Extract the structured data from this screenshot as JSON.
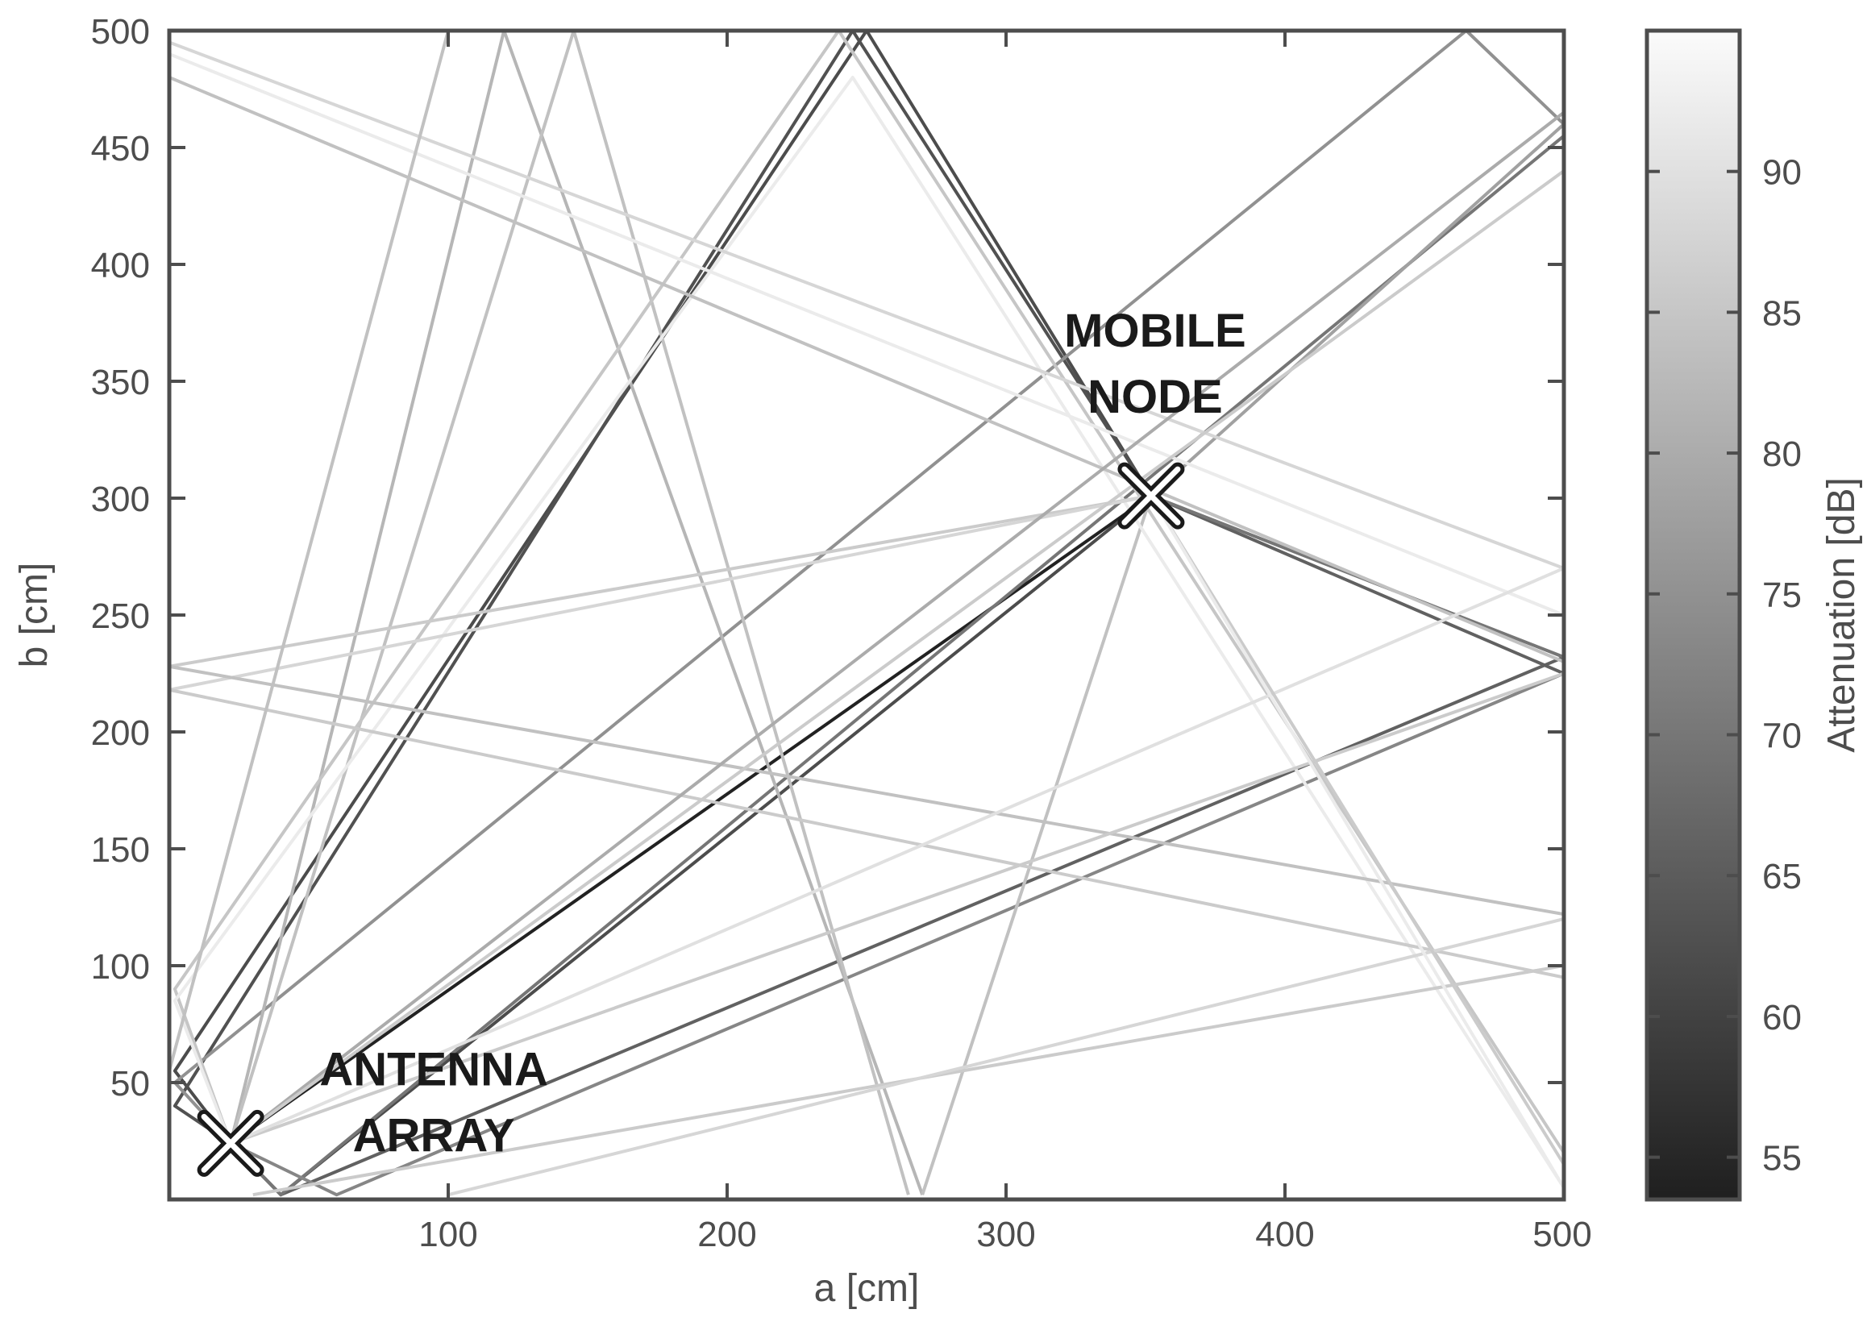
{
  "chart_data": {
    "type": "line",
    "xlabel": "a [cm]",
    "ylabel": "b [cm]",
    "xlim": [
      0,
      500
    ],
    "ylim": [
      0,
      500
    ],
    "xticks": [
      100,
      200,
      300,
      400,
      500
    ],
    "yticks": [
      50,
      100,
      150,
      200,
      250,
      300,
      350,
      400,
      450,
      500
    ],
    "grid": false,
    "colorbar": {
      "label": "Attenuation [dB]",
      "range": [
        53.5,
        95
      ],
      "ticks": [
        55,
        60,
        65,
        70,
        75,
        80,
        85,
        90
      ],
      "colormap": "gray"
    },
    "markers": [
      {
        "label_lines": [
          "ANTENNA",
          "ARRAY"
        ],
        "x": 22,
        "y": 24
      },
      {
        "label_lines": [
          "MOBILE",
          "NODE"
        ],
        "x": 352,
        "y": 301
      }
    ],
    "rays": [
      {
        "points": [
          [
            22,
            24
          ],
          [
            352,
            301
          ]
        ],
        "attenuation_db": 54
      },
      {
        "points": [
          [
            22,
            24
          ],
          [
            40,
            2
          ],
          [
            352,
            301
          ]
        ],
        "attenuation_db": 62
      },
      {
        "points": [
          [
            22,
            24
          ],
          [
            2,
            55
          ],
          [
            250,
            500
          ],
          [
            352,
            301
          ]
        ],
        "attenuation_db": 62
      },
      {
        "points": [
          [
            22,
            24
          ],
          [
            40,
            2
          ],
          [
            500,
            232
          ]
        ],
        "attenuation_db": 66
      },
      {
        "points": [
          [
            22,
            24
          ],
          [
            2,
            40
          ],
          [
            245,
            500
          ],
          [
            352,
            301
          ]
        ],
        "attenuation_db": 63
      },
      {
        "points": [
          [
            22,
            24
          ],
          [
            40,
            2
          ],
          [
            500,
            455
          ]
        ],
        "attenuation_db": 70
      },
      {
        "points": [
          [
            352,
            301
          ],
          [
            500,
            225
          ]
        ],
        "attenuation_db": 66
      },
      {
        "points": [
          [
            352,
            301
          ],
          [
            500,
            232
          ]
        ],
        "attenuation_db": 70
      },
      {
        "points": [
          [
            22,
            24
          ],
          [
            2,
            50
          ],
          [
            465,
            500
          ],
          [
            500,
            460
          ]
        ],
        "attenuation_db": 75
      },
      {
        "points": [
          [
            500,
            460
          ],
          [
            352,
            301
          ]
        ],
        "attenuation_db": 78
      },
      {
        "points": [
          [
            22,
            24
          ],
          [
            60,
            2
          ],
          [
            500,
            225
          ]
        ],
        "attenuation_db": 73
      },
      {
        "points": [
          [
            22,
            24
          ],
          [
            120,
            500
          ],
          [
            270,
            2
          ]
        ],
        "attenuation_db": 82
      },
      {
        "points": [
          [
            22,
            24
          ],
          [
            145,
            500
          ],
          [
            265,
            2
          ]
        ],
        "attenuation_db": 84
      },
      {
        "points": [
          [
            270,
            2
          ],
          [
            352,
            301
          ]
        ],
        "attenuation_db": 84
      },
      {
        "points": [
          [
            22,
            24
          ],
          [
            2,
            90
          ],
          [
            240,
            500
          ],
          [
            500,
            20
          ]
        ],
        "attenuation_db": 85
      },
      {
        "points": [
          [
            22,
            24
          ],
          [
            2,
            85
          ],
          [
            245,
            480
          ],
          [
            500,
            5
          ]
        ],
        "attenuation_db": 92
      },
      {
        "points": [
          [
            0,
            228
          ],
          [
            352,
            301
          ]
        ],
        "attenuation_db": 86
      },
      {
        "points": [
          [
            0,
            218
          ],
          [
            352,
            301
          ]
        ],
        "attenuation_db": 88
      },
      {
        "points": [
          [
            0,
            228
          ],
          [
            500,
            122
          ]
        ],
        "attenuation_db": 84
      },
      {
        "points": [
          [
            0,
            218
          ],
          [
            500,
            95
          ]
        ],
        "attenuation_db": 86
      },
      {
        "points": [
          [
            0,
            480
          ],
          [
            500,
            230
          ]
        ],
        "attenuation_db": 84
      },
      {
        "points": [
          [
            0,
            495
          ],
          [
            500,
            270
          ]
        ],
        "attenuation_db": 88
      },
      {
        "points": [
          [
            0,
            490
          ],
          [
            500,
            250
          ]
        ],
        "attenuation_db": 92
      },
      {
        "points": [
          [
            30,
            2
          ],
          [
            500,
            100
          ]
        ],
        "attenuation_db": 86
      },
      {
        "points": [
          [
            22,
            24
          ],
          [
            500,
            225
          ]
        ],
        "attenuation_db": 86
      },
      {
        "points": [
          [
            22,
            24
          ],
          [
            500,
            270
          ]
        ],
        "attenuation_db": 90
      },
      {
        "points": [
          [
            100,
            2
          ],
          [
            500,
            120
          ]
        ],
        "attenuation_db": 88
      },
      {
        "points": [
          [
            0,
            55
          ],
          [
            100,
            500
          ]
        ],
        "attenuation_db": 84
      },
      {
        "points": [
          [
            22,
            24
          ],
          [
            500,
            465
          ]
        ],
        "attenuation_db": 80
      },
      {
        "points": [
          [
            22,
            24
          ],
          [
            500,
            440
          ]
        ],
        "attenuation_db": 86
      },
      {
        "points": [
          [
            352,
            301
          ],
          [
            500,
            15
          ]
        ],
        "attenuation_db": 86
      },
      {
        "points": [
          [
            352,
            301
          ],
          [
            500,
            5
          ]
        ],
        "attenuation_db": 92
      }
    ]
  }
}
